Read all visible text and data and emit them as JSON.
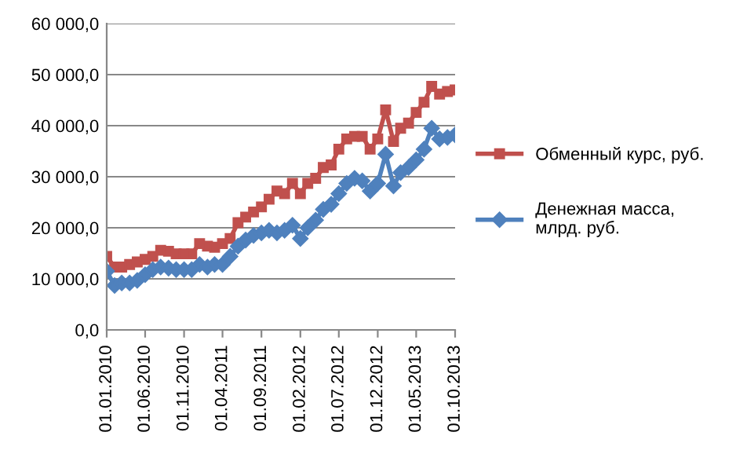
{
  "chart_data": {
    "type": "line",
    "x": [
      "2010-01-01",
      "2010-02-01",
      "2010-03-01",
      "2010-04-01",
      "2010-05-01",
      "2010-06-01",
      "2010-07-01",
      "2010-08-01",
      "2010-09-01",
      "2010-10-01",
      "2010-11-01",
      "2010-12-01",
      "2011-01-01",
      "2011-02-01",
      "2011-03-01",
      "2011-04-01",
      "2011-05-01",
      "2011-06-01",
      "2011-07-01",
      "2011-08-01",
      "2011-09-01",
      "2011-10-01",
      "2011-11-01",
      "2011-12-01",
      "2012-01-01",
      "2012-02-01",
      "2012-03-01",
      "2012-04-01",
      "2012-05-01",
      "2012-06-01",
      "2012-07-01",
      "2012-08-01",
      "2012-09-01",
      "2012-10-01",
      "2012-11-01",
      "2012-12-01",
      "2013-01-01",
      "2013-02-01",
      "2013-03-01",
      "2013-04-01",
      "2013-05-01",
      "2013-06-01",
      "2013-07-01",
      "2013-08-01",
      "2013-09-01",
      "2013-10-01"
    ],
    "series": [
      {
        "name": "Обменный курс, руб.",
        "color": "#c0504d",
        "marker": "square",
        "values": [
          14400,
          12300,
          12300,
          12800,
          13300,
          13800,
          14400,
          15600,
          15400,
          14900,
          14900,
          14900,
          16900,
          16400,
          16200,
          16900,
          17900,
          21000,
          22100,
          23100,
          24100,
          25600,
          27200,
          26700,
          28700,
          26700,
          28700,
          29700,
          31800,
          32300,
          35400,
          37400,
          37900,
          37900,
          35400,
          37400,
          43100,
          36900,
          39500,
          40500,
          42600,
          44600,
          47700,
          46200,
          46700,
          47000
        ]
      },
      {
        "name": "Денежная масса, млрд. руб.",
        "color": "#4f81bd",
        "marker": "diamond",
        "values": [
          11500,
          8700,
          9200,
          9200,
          9700,
          10800,
          11800,
          12300,
          12100,
          11800,
          11800,
          11800,
          12800,
          12300,
          12800,
          12800,
          14400,
          16400,
          17600,
          18500,
          19000,
          19500,
          19000,
          19500,
          20500,
          17900,
          20000,
          21500,
          23600,
          24600,
          26700,
          28700,
          29700,
          29200,
          27200,
          28700,
          34400,
          28200,
          30800,
          31800,
          33300,
          35400,
          39500,
          37400,
          37700,
          38200
        ]
      }
    ],
    "xlim": [
      "2010-01-01",
      "2013-10-01"
    ],
    "xticks": [
      {
        "value": "2010-01-01",
        "label": "01.01.2010"
      },
      {
        "value": "2010-06-01",
        "label": "01.06.2010"
      },
      {
        "value": "2010-11-01",
        "label": "01.11.2010"
      },
      {
        "value": "2011-04-01",
        "label": "01.04.2011"
      },
      {
        "value": "2011-09-01",
        "label": "01.09.2011"
      },
      {
        "value": "2012-02-01",
        "label": "01.02.2012"
      },
      {
        "value": "2012-07-01",
        "label": "01.07.2012"
      },
      {
        "value": "2012-12-01",
        "label": "01.12.2012"
      },
      {
        "value": "2013-05-01",
        "label": "01.05.2013"
      },
      {
        "value": "2013-10-01",
        "label": "01.10.2013"
      }
    ],
    "ylim": [
      0,
      60000
    ],
    "yticks": [
      {
        "value": 0,
        "label": "0,0"
      },
      {
        "value": 10000,
        "label": "10 000,0"
      },
      {
        "value": 20000,
        "label": "20 000,0"
      },
      {
        "value": 30000,
        "label": "30 000,0"
      },
      {
        "value": 40000,
        "label": "40 000,0"
      },
      {
        "value": 50000,
        "label": "50 000,0"
      },
      {
        "value": 60000,
        "label": "60 000,0"
      }
    ],
    "grid": "y",
    "legend": "right"
  }
}
